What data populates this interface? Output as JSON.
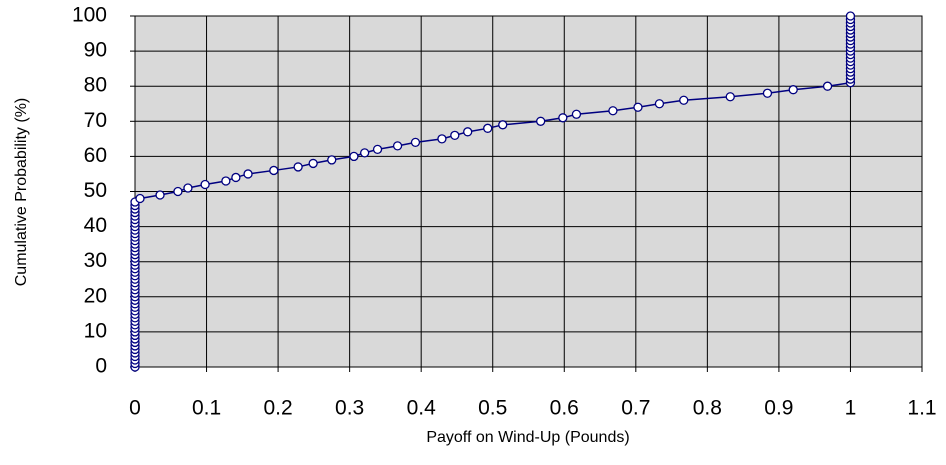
{
  "chart_data": {
    "type": "line",
    "xlabel": "Payoff on Wind-Up (Pounds)",
    "ylabel": "Cumulative Probability (%)",
    "xlim": [
      0,
      1.1
    ],
    "xticks": [
      0,
      0.1,
      0.2,
      0.3,
      0.4,
      0.5,
      0.6,
      0.7,
      0.8,
      0.9,
      1,
      1.1
    ],
    "ylim": [
      0,
      100
    ],
    "yticks": [
      0,
      10,
      20,
      30,
      40,
      50,
      60,
      70,
      80,
      90,
      100
    ],
    "grid": true,
    "color": "#000080",
    "marker_fill": "#ffffff",
    "plot_background": "#d9d9d9",
    "x": [
      0,
      0,
      0,
      0,
      0,
      0,
      0,
      0,
      0,
      0,
      0,
      0,
      0,
      0,
      0,
      0,
      0,
      0,
      0,
      0,
      0,
      0,
      0,
      0,
      0,
      0,
      0,
      0,
      0,
      0,
      0,
      0,
      0,
      0,
      0,
      0,
      0,
      0,
      0,
      0,
      0,
      0,
      0,
      0,
      0,
      0,
      0,
      0,
      0.007,
      0.035,
      0.06,
      0.074,
      0.098,
      0.127,
      0.141,
      0.158,
      0.194,
      0.228,
      0.249,
      0.275,
      0.306,
      0.321,
      0.339,
      0.367,
      0.392,
      0.429,
      0.447,
      0.465,
      0.493,
      0.514,
      0.567,
      0.598,
      0.617,
      0.668,
      0.703,
      0.733,
      0.767,
      0.832,
      0.884,
      0.92,
      0.968,
      1,
      1,
      1,
      1,
      1,
      1,
      1,
      1,
      1,
      1,
      1,
      1,
      1,
      1,
      1,
      1,
      1,
      1,
      1,
      1
    ],
    "values": [
      0,
      1,
      2,
      3,
      4,
      5,
      6,
      7,
      8,
      9,
      10,
      11,
      12,
      13,
      14,
      15,
      16,
      17,
      18,
      19,
      20,
      21,
      22,
      23,
      24,
      25,
      26,
      27,
      28,
      29,
      30,
      31,
      32,
      33,
      34,
      35,
      36,
      37,
      38,
      39,
      40,
      41,
      42,
      43,
      44,
      45,
      46,
      47,
      48,
      49,
      50,
      51,
      52,
      53,
      54,
      55,
      56,
      57,
      58,
      59,
      60,
      61,
      62,
      63,
      64,
      65,
      66,
      67,
      68,
      69,
      70,
      71,
      72,
      73,
      74,
      75,
      76,
      77,
      78,
      79,
      80,
      81,
      82,
      83,
      84,
      85,
      86,
      87,
      88,
      89,
      90,
      91,
      92,
      93,
      94,
      95,
      96,
      97,
      98,
      99,
      100
    ]
  }
}
